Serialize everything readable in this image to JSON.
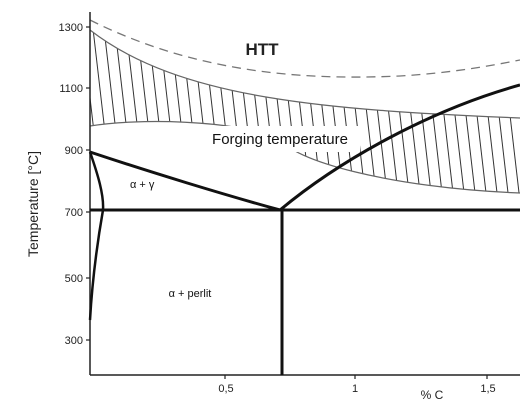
{
  "diagram": {
    "y_axis_label": "Temperature [°C]",
    "y_ticks": [
      "1300",
      "1100",
      "900",
      "700",
      "500",
      "300"
    ],
    "x_ticks": [
      "0,5",
      "1",
      "1,5"
    ],
    "x_unit": "% C",
    "labels": {
      "htt": "HTT",
      "forging": "Forging temperature",
      "alpha_gamma": "α + γ",
      "alpha_perlit": "α + perlit"
    }
  }
}
